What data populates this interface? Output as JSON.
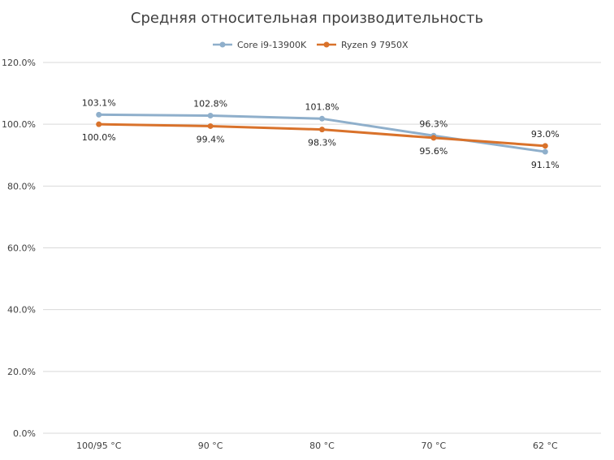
{
  "chart_data": {
    "type": "line",
    "title": "Средняя относительная производительность",
    "xlabel": "",
    "ylabel": "",
    "categories": [
      "100/95 °C",
      "90 °C",
      "80 °C",
      "70 °C",
      "62 °C"
    ],
    "ylim": [
      0,
      120
    ],
    "yticks": [
      0,
      20,
      40,
      60,
      80,
      100,
      120
    ],
    "ytick_labels": [
      "0.0%",
      "20.0%",
      "40.0%",
      "60.0%",
      "80.0%",
      "100.0%",
      "120.0%"
    ],
    "grid": true,
    "legend_position": "top-center",
    "series": [
      {
        "name": "Core i9-13900K",
        "color": "#8FAFCB",
        "values": [
          103.1,
          102.8,
          101.8,
          96.3,
          91.1
        ],
        "labels": [
          "103.1%",
          "102.8%",
          "101.8%",
          "96.3%",
          "91.1%"
        ]
      },
      {
        "name": "Ryzen 9 7950X",
        "color": "#D9722B",
        "values": [
          100.0,
          99.4,
          98.3,
          95.6,
          93.0
        ],
        "labels": [
          "100.0%",
          "99.4%",
          "98.3%",
          "95.6%",
          "93.0%"
        ]
      }
    ]
  }
}
